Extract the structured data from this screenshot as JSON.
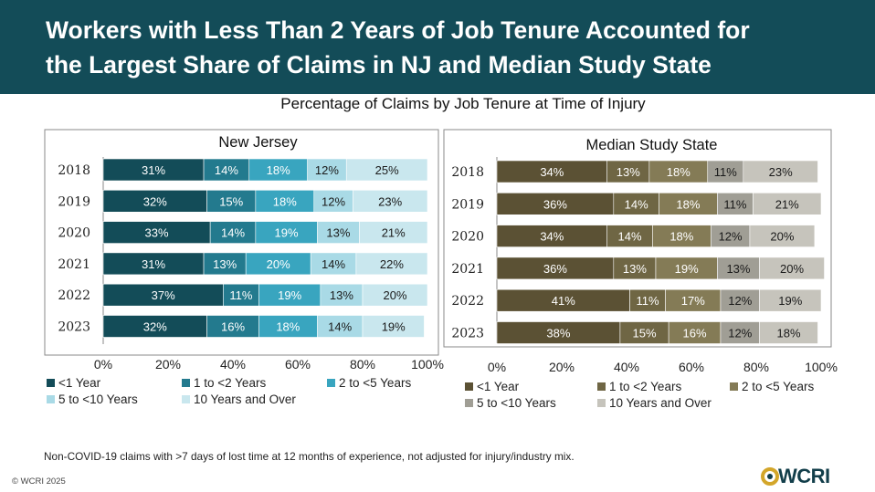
{
  "header": {
    "title_line1": "Workers with Less Than 2 Years of Job Tenure Accounted for",
    "title_line2": "the Largest Share of Claims in NJ and Median Study State"
  },
  "subtitle": "Percentage of Claims by Job Tenure at Time of Injury",
  "footnote": "Non-COVID-19 claims with >7 days of lost time at 12 months of experience, not adjusted for injury/industry mix.",
  "copyright": "© WCRI 2025",
  "logo_text": "WCRI",
  "chart_data": [
    {
      "type": "bar",
      "orientation": "horizontal",
      "stacked": true,
      "title": "New Jersey",
      "categories": [
        "2018",
        "2019",
        "2020",
        "2021",
        "2022",
        "2023"
      ],
      "x_ticks": [
        "0%",
        "20%",
        "40%",
        "60%",
        "80%",
        "100%"
      ],
      "xlim": [
        0,
        100
      ],
      "grid": false,
      "legend_position": "bottom",
      "series": [
        {
          "name": "<1 Year",
          "color": "#134c58",
          "values": [
            31,
            32,
            33,
            31,
            37,
            32
          ]
        },
        {
          "name": "1 to <2 Years",
          "color": "#237a8e",
          "values": [
            14,
            15,
            14,
            13,
            11,
            16
          ]
        },
        {
          "name": "2 to <5 Years",
          "color": "#39a5bf",
          "values": [
            18,
            18,
            19,
            20,
            19,
            18
          ]
        },
        {
          "name": "5 to <10 Years",
          "color": "#a9dae6",
          "values": [
            12,
            12,
            13,
            14,
            13,
            14
          ]
        },
        {
          "name": "10 Years and Over",
          "color": "#c9e7ee",
          "values": [
            25,
            23,
            21,
            22,
            20,
            19
          ]
        }
      ]
    },
    {
      "type": "bar",
      "orientation": "horizontal",
      "stacked": true,
      "title": "Median Study State",
      "categories": [
        "2018",
        "2019",
        "2020",
        "2021",
        "2022",
        "2023"
      ],
      "x_ticks": [
        "0%",
        "20%",
        "40%",
        "60%",
        "80%",
        "100%"
      ],
      "xlim": [
        0,
        100
      ],
      "grid": false,
      "legend_position": "bottom",
      "series": [
        {
          "name": "<1 Year",
          "color": "#5b5134",
          "values": [
            34,
            36,
            34,
            36,
            41,
            38
          ]
        },
        {
          "name": "1 to <2 Years",
          "color": "#6f6644",
          "values": [
            13,
            14,
            14,
            13,
            11,
            15
          ]
        },
        {
          "name": "2 to <5 Years",
          "color": "#847b56",
          "values": [
            18,
            18,
            18,
            19,
            17,
            16
          ]
        },
        {
          "name": "5 to <10 Years",
          "color": "#a09e95",
          "values": [
            11,
            11,
            12,
            13,
            12,
            12
          ]
        },
        {
          "name": "10 Years and Over",
          "color": "#c6c4bc",
          "values": [
            23,
            21,
            20,
            20,
            19,
            18
          ]
        }
      ]
    }
  ]
}
